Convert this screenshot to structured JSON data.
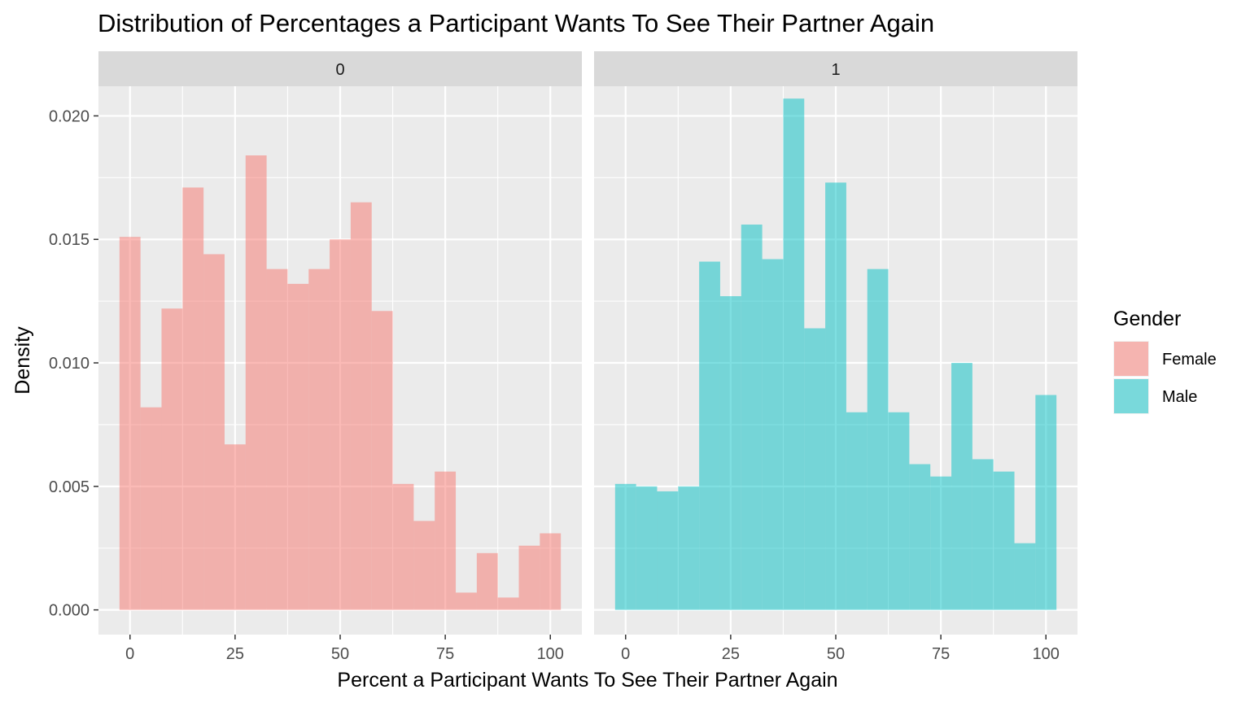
{
  "chart_data": {
    "type": "bar",
    "subtype": "faceted-histogram",
    "title": "Distribution of Percentages a Participant Wants To See Their Partner Again",
    "xlabel": "Percent a Participant Wants To See Their Partner Again",
    "ylabel": "Density",
    "xlim": [
      -7.5,
      107.5
    ],
    "ylim": [
      -0.001,
      0.0212
    ],
    "x_ticks": [
      0,
      25,
      50,
      75,
      100
    ],
    "x_tick_labels": [
      "0",
      "25",
      "50",
      "75",
      "100"
    ],
    "y_ticks": [
      0,
      0.005,
      0.01,
      0.015,
      0.02
    ],
    "y_tick_labels": [
      "0.000",
      "0.005",
      "0.010",
      "0.015",
      "0.020"
    ],
    "bin_width": 5,
    "bin_centers": [
      0,
      5,
      10,
      15,
      20,
      25,
      30,
      35,
      40,
      45,
      50,
      55,
      60,
      65,
      70,
      75,
      80,
      85,
      90,
      95,
      100
    ],
    "grid": true,
    "legend": {
      "title": "Gender",
      "position": "right",
      "entries": [
        {
          "label": "Female",
          "color": "#f8766d"
        },
        {
          "label": "Male",
          "color": "#00bfc4"
        }
      ]
    },
    "facets": [
      {
        "label": "0",
        "series": [
          {
            "name": "Female",
            "color": "#f8766d",
            "values": [
              0.0151,
              0.0082,
              0.0122,
              0.0171,
              0.0144,
              0.0067,
              0.0184,
              0.0138,
              0.0132,
              0.0138,
              0.015,
              0.0165,
              0.0121,
              0.0051,
              0.0036,
              0.0056,
              0.0007,
              0.0023,
              0.0005,
              0.0026,
              0.0031
            ]
          }
        ]
      },
      {
        "label": "1",
        "series": [
          {
            "name": "Male",
            "color": "#00bfc4",
            "values": [
              0.0051,
              0.005,
              0.0048,
              0.005,
              0.0141,
              0.0127,
              0.0156,
              0.0142,
              0.0207,
              0.0114,
              0.0173,
              0.008,
              0.0138,
              0.008,
              0.0059,
              0.0054,
              0.01,
              0.0061,
              0.0056,
              0.0027,
              0.0087
            ]
          }
        ]
      }
    ]
  }
}
